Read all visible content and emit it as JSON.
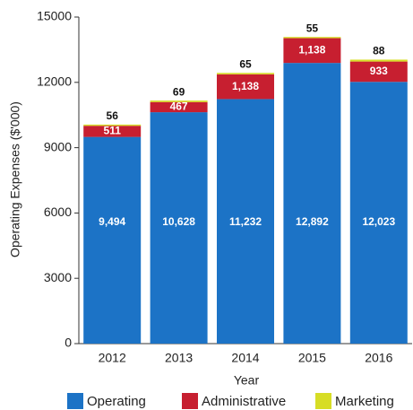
{
  "chart_data": {
    "type": "stacked_bar",
    "x_label": "Year",
    "y_label": "Operating Expenses ($'000)",
    "categories": [
      "2012",
      "2013",
      "2014",
      "2015",
      "2016"
    ],
    "series": [
      {
        "name": "Operating",
        "color": "#1c73c6",
        "values": [
          9494,
          10628,
          11232,
          12892,
          12023
        ],
        "value_labels": [
          "9,494",
          "10,628",
          "11,232",
          "12,892",
          "12,023"
        ]
      },
      {
        "name": "Administrative",
        "color": "#c71f30",
        "values": [
          511,
          467,
          1138,
          1138,
          933
        ],
        "value_labels": [
          "511",
          "467",
          "1,138",
          "1,138",
          "933"
        ]
      },
      {
        "name": "Marketing",
        "color": "#d7dd25",
        "values": [
          56,
          69,
          65,
          55,
          88
        ],
        "value_labels": [
          "56",
          "69",
          "65",
          "55",
          "88"
        ]
      }
    ],
    "ylim": [
      0,
      15000
    ],
    "yticks": [
      0,
      3000,
      6000,
      9000,
      12000,
      15000
    ],
    "legend": "bottom"
  }
}
